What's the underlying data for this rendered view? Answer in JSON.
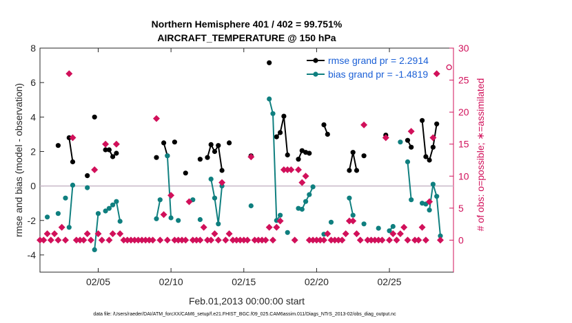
{
  "chart_data": {
    "type": "line",
    "title": "Northern Hemisphere 401 / 402 = 99.751%",
    "subtitle": "AIRCRAFT_TEMPERATURE @ 150 hPa",
    "xlabel": "Feb.01,2013 00:00:00 start",
    "ylabel": "rmse and bias (model - observation)",
    "y2label": "# of obs: o=possible; ∗=assimilated",
    "xlim": [
      1,
      29.4
    ],
    "ylim": [
      -5,
      8
    ],
    "y2lim": [
      -5,
      30
    ],
    "x_ticks": [
      5,
      10,
      15,
      20,
      25
    ],
    "x_tick_labels": [
      "02/05",
      "02/10",
      "02/15",
      "02/20",
      "02/25"
    ],
    "y_ticks": [
      -4,
      -2,
      0,
      2,
      4,
      6,
      8
    ],
    "y2_ticks": [
      0,
      5,
      10,
      15,
      20,
      25,
      30
    ],
    "colors": {
      "rmse": "#000000",
      "bias": "#0f7f7f",
      "obs": "#d1105a",
      "zero": "#c8b8c8"
    },
    "legend": {
      "rmse_label": "rmse grand pr = 2.2914",
      "bias_label": "bias grand pr = -1.4819",
      "placement": "top-right"
    },
    "footer": "data file: /Users/raeder/DAI/ATM_forcXX/CAM6_setup/f.e21.FHIST_BGC.f09_025.CAM6assim.011/Diags_NTrS_2013-02/obs_diag_output.nc",
    "series": [
      {
        "name": "rmse",
        "segments": [
          [
            [
              2.25,
              2.35
            ]
          ],
          [
            [
              3.0,
              2.8
            ],
            [
              3.25,
              1.4
            ]
          ],
          [
            [
              4.25,
              0.6
            ]
          ],
          [
            [
              4.75,
              4.0
            ]
          ],
          [
            [
              5.5,
              2.1
            ],
            [
              5.75,
              2.1
            ],
            [
              6.0,
              1.7
            ],
            [
              6.25,
              1.9
            ]
          ],
          [
            [
              9.0,
              1.65
            ]
          ],
          [
            [
              9.5,
              2.5
            ],
            [
              9.75,
              1.75
            ]
          ],
          [
            [
              10.25,
              2.55
            ]
          ],
          [
            [
              11.0,
              0.75
            ]
          ],
          [
            [
              12.0,
              1.55
            ]
          ],
          [
            [
              12.5,
              1.65
            ],
            [
              12.75,
              2.4
            ],
            [
              13.0,
              2.0
            ],
            [
              13.25,
              2.35
            ],
            [
              13.5,
              0.9
            ]
          ],
          [
            [
              14.0,
              2.5
            ]
          ],
          [
            [
              15.5,
              1.75
            ]
          ],
          [
            [
              16.75,
              7.15
            ]
          ],
          [
            [
              17.25,
              2.85
            ],
            [
              17.5,
              3.1
            ],
            [
              17.75,
              4.05
            ],
            [
              18.0,
              1.8
            ]
          ],
          [
            [
              18.75,
              1.55
            ],
            [
              19.0,
              2.05
            ],
            [
              19.25,
              1.95
            ],
            [
              19.5,
              1.9
            ]
          ],
          [
            [
              20.5,
              3.55
            ],
            [
              20.75,
              3.0
            ]
          ],
          [
            [
              22.25,
              0.9
            ],
            [
              22.5,
              1.95
            ],
            [
              22.75,
              0.9
            ]
          ],
          [
            [
              23.25,
              1.75
            ]
          ],
          [
            [
              24.75,
              2.95
            ]
          ],
          [
            [
              26.25,
              2.65
            ],
            [
              26.5,
              2.25
            ]
          ],
          [
            [
              27.25,
              3.8
            ],
            [
              27.5,
              1.7
            ],
            [
              27.75,
              1.5
            ],
            [
              28.0,
              2.25
            ],
            [
              28.25,
              3.6
            ]
          ]
        ]
      },
      {
        "name": "bias",
        "segments": [
          [
            [
              1.5,
              -1.8
            ]
          ],
          [
            [
              2.25,
              -1.6
            ]
          ],
          [
            [
              2.75,
              -0.7
            ]
          ],
          [
            [
              3.0,
              -2.4
            ],
            [
              3.25,
              0.05
            ]
          ],
          [
            [
              4.25,
              -0.1
            ]
          ],
          [
            [
              4.75,
              -3.7
            ],
            [
              5.0,
              -1.6
            ]
          ],
          [
            [
              5.5,
              -1.45
            ]
          ],
          [
            [
              5.75,
              -1.3
            ],
            [
              6.0,
              -1.1
            ],
            [
              6.25,
              -0.9
            ],
            [
              6.5,
              -2.05
            ]
          ],
          [
            [
              9.0,
              -1.9
            ],
            [
              9.25,
              -0.8
            ]
          ],
          [
            [
              9.75,
              1.75
            ],
            [
              10.0,
              -1.85
            ]
          ],
          [
            [
              10.5,
              -2.0
            ]
          ],
          [
            [
              11.5,
              -0.8
            ]
          ],
          [
            [
              12.0,
              -1.95
            ]
          ],
          [
            [
              12.75,
              0.4
            ],
            [
              13.0,
              -0.7
            ],
            [
              13.25,
              -2.2
            ],
            [
              13.5,
              0.0
            ]
          ],
          [
            [
              15.5,
              -1.15
            ]
          ],
          [
            [
              16.75,
              5.05
            ],
            [
              17.0,
              4.2
            ],
            [
              17.25,
              -2.0
            ],
            [
              17.5,
              -1.7
            ]
          ],
          [
            [
              18.0,
              -2.7
            ]
          ],
          [
            [
              18.75,
              -1.3
            ],
            [
              19.0,
              -1.35
            ],
            [
              19.25,
              -0.9
            ],
            [
              19.5,
              -0.5
            ],
            [
              19.75,
              -0.05
            ]
          ],
          [
            [
              20.5,
              -2.8
            ]
          ],
          [
            [
              21.0,
              -2.1
            ]
          ],
          [
            [
              22.25,
              -0.7
            ],
            [
              22.5,
              -1.7
            ]
          ],
          [
            [
              23.25,
              -2.2
            ]
          ],
          [
            [
              24.25,
              -2.45
            ]
          ],
          [
            [
              25.0,
              -2.6
            ],
            [
              25.25,
              -2.35
            ]
          ],
          [
            [
              25.75,
              2.55
            ]
          ],
          [
            [
              26.25,
              1.4
            ],
            [
              26.5,
              -0.8
            ]
          ],
          [
            [
              27.25,
              -1.0
            ],
            [
              27.5,
              -1.05
            ]
          ],
          [
            [
              27.75,
              -1.4
            ],
            [
              28.0,
              0.1
            ],
            [
              28.25,
              -0.6
            ],
            [
              28.5,
              -2.9
            ]
          ]
        ]
      },
      {
        "name": "obs_count",
        "axis": "right",
        "points": [
          [
            1.0,
            0
          ],
          [
            1.25,
            0
          ],
          [
            1.5,
            1
          ],
          [
            1.75,
            0
          ],
          [
            2.0,
            1
          ],
          [
            2.25,
            0
          ],
          [
            2.5,
            2
          ],
          [
            2.75,
            0
          ],
          [
            3.0,
            26
          ],
          [
            3.25,
            16
          ],
          [
            3.5,
            0
          ],
          [
            3.75,
            0
          ],
          [
            4.0,
            0
          ],
          [
            4.25,
            1
          ],
          [
            4.5,
            0
          ],
          [
            4.75,
            11
          ],
          [
            5.0,
            1
          ],
          [
            5.25,
            0
          ],
          [
            5.5,
            15
          ],
          [
            5.75,
            0
          ],
          [
            6.0,
            1
          ],
          [
            6.25,
            15
          ],
          [
            6.5,
            1
          ],
          [
            6.75,
            0
          ],
          [
            7.0,
            0
          ],
          [
            7.25,
            0
          ],
          [
            7.5,
            0
          ],
          [
            7.75,
            0
          ],
          [
            8.0,
            0
          ],
          [
            8.25,
            0
          ],
          [
            8.5,
            0
          ],
          [
            8.75,
            0
          ],
          [
            9.0,
            19
          ],
          [
            9.25,
            0
          ],
          [
            9.5,
            4
          ],
          [
            9.75,
            0
          ],
          [
            10.0,
            7
          ],
          [
            10.25,
            0
          ],
          [
            10.5,
            0
          ],
          [
            10.75,
            0
          ],
          [
            11.0,
            0
          ],
          [
            11.25,
            6
          ],
          [
            11.5,
            0
          ],
          [
            11.75,
            0
          ],
          [
            12.0,
            0
          ],
          [
            12.25,
            2
          ],
          [
            12.5,
            0
          ],
          [
            12.75,
            0
          ],
          [
            13.0,
            1
          ],
          [
            13.25,
            0
          ],
          [
            13.5,
            9
          ],
          [
            13.75,
            0
          ],
          [
            14.0,
            1
          ],
          [
            14.25,
            0
          ],
          [
            14.5,
            0
          ],
          [
            14.75,
            0
          ],
          [
            15.0,
            0
          ],
          [
            15.25,
            0
          ],
          [
            15.5,
            13
          ],
          [
            15.75,
            0
          ],
          [
            16.0,
            0
          ],
          [
            16.25,
            0
          ],
          [
            16.5,
            0
          ],
          [
            16.75,
            2
          ],
          [
            17.0,
            0
          ],
          [
            17.25,
            2
          ],
          [
            17.5,
            3
          ],
          [
            17.75,
            11
          ],
          [
            18.0,
            11
          ],
          [
            18.25,
            11
          ],
          [
            18.5,
            0
          ],
          [
            18.75,
            11
          ],
          [
            19.0,
            9
          ],
          [
            19.25,
            10
          ],
          [
            19.5,
            0
          ],
          [
            19.75,
            0
          ],
          [
            20.0,
            0
          ],
          [
            20.25,
            0
          ],
          [
            20.5,
            0
          ],
          [
            20.75,
            1
          ],
          [
            21.0,
            0
          ],
          [
            21.25,
            0
          ],
          [
            21.5,
            0
          ],
          [
            21.75,
            0
          ],
          [
            22.0,
            1
          ],
          [
            22.25,
            3
          ],
          [
            22.5,
            3
          ],
          [
            22.75,
            1
          ],
          [
            23.0,
            0
          ],
          [
            23.25,
            18
          ],
          [
            23.5,
            0
          ],
          [
            23.75,
            0
          ],
          [
            24.0,
            0
          ],
          [
            24.25,
            0
          ],
          [
            24.5,
            0
          ],
          [
            24.75,
            16
          ],
          [
            25.0,
            0
          ],
          [
            25.25,
            1
          ],
          [
            25.5,
            0
          ],
          [
            25.75,
            1
          ],
          [
            26.0,
            2
          ],
          [
            26.25,
            0
          ],
          [
            26.5,
            17
          ],
          [
            26.75,
            0
          ],
          [
            27.0,
            0
          ],
          [
            27.25,
            2
          ],
          [
            27.5,
            0
          ],
          [
            27.75,
            6
          ],
          [
            28.0,
            16
          ],
          [
            28.25,
            26
          ],
          [
            28.5,
            0
          ]
        ]
      }
    ]
  }
}
